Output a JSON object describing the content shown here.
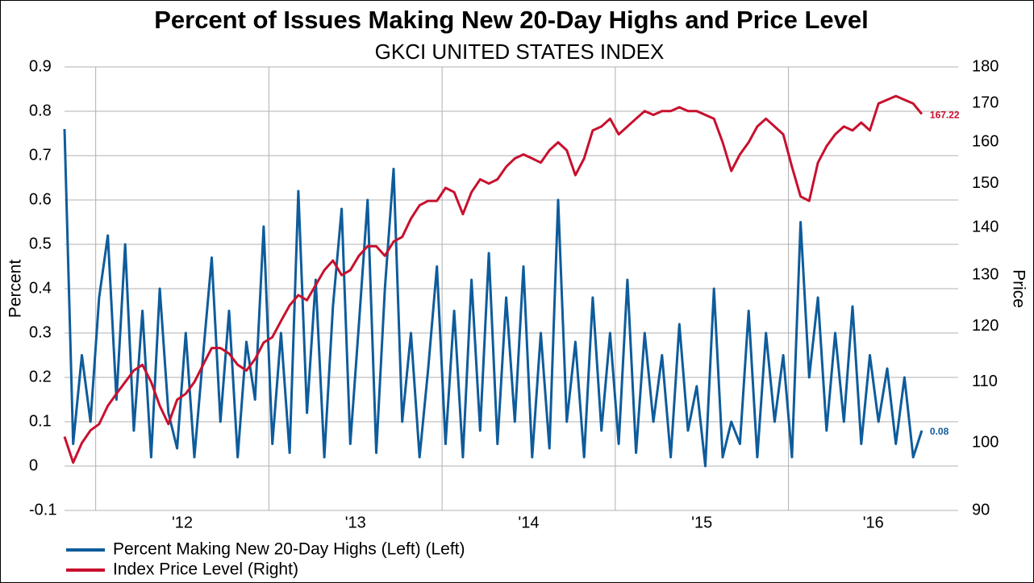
{
  "chart_data": {
    "type": "line",
    "title": "Percent of Issues  Making New 20-Day Highs and Price Level",
    "subtitle": "GKCI UNITED STATES INDEX",
    "ylabel": "Percent",
    "y2label": "Price",
    "y2log": true,
    "grid": true,
    "legend": "bottom-left",
    "xlim": [
      2011.82,
      2016.98
    ],
    "xticks": [
      {
        "value": 2012,
        "label": "'12"
      },
      {
        "value": 2013,
        "label": "'13"
      },
      {
        "value": 2014,
        "label": "'14"
      },
      {
        "value": 2015,
        "label": "'15"
      },
      {
        "value": 2016,
        "label": "'16"
      }
    ],
    "ylim": [
      -0.1,
      0.9
    ],
    "yticks": [
      -0.1,
      0,
      0.1,
      0.2,
      0.3,
      0.4,
      0.5,
      0.6,
      0.7,
      0.8,
      0.9
    ],
    "y2lim": [
      90,
      180
    ],
    "y2ticks": [
      90,
      100,
      110,
      120,
      130,
      140,
      150,
      160,
      170,
      180
    ],
    "x": [
      2011.82,
      2011.87,
      2011.92,
      2011.97,
      2012.02,
      2012.07,
      2012.12,
      2012.17,
      2012.22,
      2012.27,
      2012.32,
      2012.37,
      2012.42,
      2012.47,
      2012.52,
      2012.57,
      2012.62,
      2012.67,
      2012.72,
      2012.77,
      2012.82,
      2012.87,
      2012.92,
      2012.97,
      2013.02,
      2013.07,
      2013.12,
      2013.17,
      2013.22,
      2013.27,
      2013.32,
      2013.37,
      2013.42,
      2013.47,
      2013.52,
      2013.57,
      2013.62,
      2013.67,
      2013.72,
      2013.77,
      2013.82,
      2013.87,
      2013.92,
      2013.97,
      2014.02,
      2014.07,
      2014.12,
      2014.17,
      2014.22,
      2014.27,
      2014.32,
      2014.37,
      2014.42,
      2014.47,
      2014.52,
      2014.57,
      2014.62,
      2014.67,
      2014.72,
      2014.77,
      2014.82,
      2014.87,
      2014.92,
      2014.97,
      2015.02,
      2015.07,
      2015.12,
      2015.17,
      2015.22,
      2015.27,
      2015.32,
      2015.37,
      2015.42,
      2015.47,
      2015.52,
      2015.57,
      2015.62,
      2015.67,
      2015.72,
      2015.77,
      2015.82,
      2015.87,
      2015.92,
      2015.97,
      2016.02,
      2016.07,
      2016.12,
      2016.17,
      2016.22,
      2016.27,
      2016.32,
      2016.37,
      2016.42,
      2016.47,
      2016.52,
      2016.57,
      2016.62,
      2016.67,
      2016.72,
      2016.77
    ],
    "series": [
      {
        "name": "Percent Making New 20-Day Highs (Left) (Left)",
        "color": "#0e5c9b",
        "axis": "y",
        "values": [
          0.76,
          0.05,
          0.25,
          0.1,
          0.38,
          0.52,
          0.15,
          0.5,
          0.08,
          0.35,
          0.02,
          0.4,
          0.12,
          0.04,
          0.3,
          0.02,
          0.25,
          0.47,
          0.1,
          0.35,
          0.02,
          0.28,
          0.15,
          0.54,
          0.05,
          0.3,
          0.03,
          0.62,
          0.12,
          0.42,
          0.02,
          0.36,
          0.58,
          0.05,
          0.32,
          0.6,
          0.03,
          0.4,
          0.67,
          0.1,
          0.3,
          0.02,
          0.22,
          0.45,
          0.05,
          0.35,
          0.02,
          0.42,
          0.08,
          0.48,
          0.05,
          0.38,
          0.1,
          0.45,
          0.02,
          0.3,
          0.04,
          0.6,
          0.1,
          0.28,
          0.02,
          0.38,
          0.08,
          0.3,
          0.05,
          0.42,
          0.03,
          0.3,
          0.1,
          0.25,
          0.02,
          0.32,
          0.08,
          0.18,
          0.0,
          0.4,
          0.02,
          0.1,
          0.05,
          0.35,
          0.02,
          0.3,
          0.1,
          0.25,
          0.02,
          0.55,
          0.2,
          0.38,
          0.08,
          0.3,
          0.1,
          0.36,
          0.05,
          0.25,
          0.1,
          0.22,
          0.05,
          0.2,
          0.02,
          0.08
        ]
      },
      {
        "name": "Index Price Level (Right)",
        "color": "#c8102e",
        "axis": "y2",
        "values": [
          101,
          97,
          100,
          102,
          103,
          106,
          108,
          110,
          112,
          113,
          110,
          106,
          103,
          107,
          108,
          110,
          113,
          116,
          116,
          115,
          113,
          112,
          114,
          117,
          118,
          121,
          124,
          126,
          125,
          128,
          131,
          133,
          130,
          131,
          134,
          136,
          136,
          134,
          137,
          138,
          142,
          145,
          146,
          146,
          149,
          148,
          143,
          148,
          151,
          150,
          151,
          154,
          156,
          157,
          156,
          155,
          158,
          160,
          158,
          152,
          156,
          163,
          164,
          166,
          162,
          164,
          166,
          168,
          167,
          168,
          168,
          169,
          168,
          168,
          167,
          166,
          160,
          153,
          157,
          160,
          164,
          166,
          164,
          162,
          154,
          147,
          146,
          155,
          159,
          162,
          164,
          163,
          165,
          163,
          170,
          171,
          172,
          171,
          170,
          167.22
        ]
      }
    ]
  }
}
